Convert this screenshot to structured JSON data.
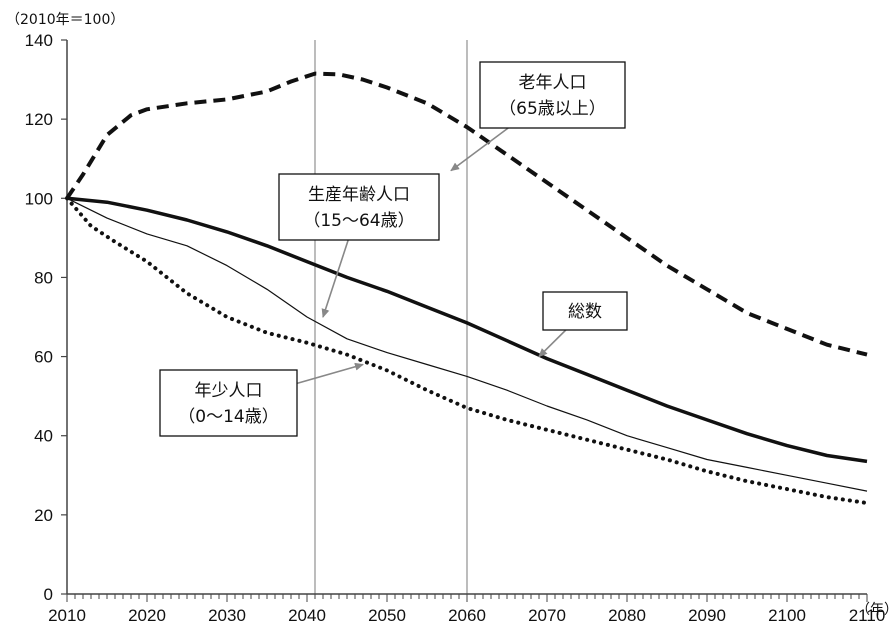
{
  "chart_data": {
    "type": "line",
    "title": "",
    "y_unit_label": "（2010年＝100）",
    "x_unit_label": "（年）",
    "xlim": [
      2010,
      2110
    ],
    "ylim": [
      0,
      140
    ],
    "x_tick_labels": [
      "2010",
      "2020",
      "2030",
      "2040",
      "2050",
      "2060",
      "2070",
      "2080",
      "2090",
      "2100",
      "2110"
    ],
    "x_ticks": [
      2010,
      2020,
      2030,
      2040,
      2050,
      2060,
      2070,
      2080,
      2090,
      2100,
      2110
    ],
    "y_ticks": [
      0,
      20,
      40,
      60,
      80,
      100,
      120,
      140
    ],
    "y_tick_labels": [
      "0",
      "20",
      "40",
      "60",
      "80",
      "100",
      "120",
      "140"
    ],
    "vertical_reference_lines": [
      2041,
      2060
    ],
    "grid": false,
    "series": [
      {
        "id": "elderly",
        "style": "dashed-thick",
        "x": [
          2010,
          2012,
          2015,
          2018,
          2020,
          2025,
          2030,
          2035,
          2038,
          2041,
          2044,
          2047,
          2050,
          2055,
          2060,
          2065,
          2070,
          2075,
          2080,
          2085,
          2090,
          2095,
          2100,
          2105,
          2110
        ],
        "values": [
          100,
          106,
          116,
          121,
          122.5,
          124,
          125,
          127,
          129.5,
          131.5,
          131.3,
          130,
          128,
          124,
          118,
          111,
          104,
          97,
          90,
          83,
          77,
          71,
          67,
          63,
          60.5
        ]
      },
      {
        "id": "working-age",
        "style": "solid-thin",
        "x": [
          2010,
          2015,
          2020,
          2025,
          2030,
          2035,
          2040,
          2045,
          2050,
          2055,
          2060,
          2065,
          2070,
          2075,
          2080,
          2085,
          2090,
          2095,
          2100,
          2105,
          2110
        ],
        "values": [
          100,
          95,
          91,
          88,
          83,
          77,
          70,
          64.5,
          61,
          58,
          55,
          51.5,
          47.5,
          44,
          40,
          37,
          34,
          32,
          30,
          28,
          26
        ]
      },
      {
        "id": "total",
        "style": "solid-thick",
        "x": [
          2010,
          2015,
          2020,
          2025,
          2030,
          2035,
          2040,
          2045,
          2050,
          2055,
          2060,
          2065,
          2070,
          2075,
          2080,
          2085,
          2090,
          2095,
          2100,
          2105,
          2110
        ],
        "values": [
          100,
          99,
          97,
          94.5,
          91.5,
          88,
          84,
          80,
          76.5,
          72.5,
          68.5,
          64,
          59.5,
          55.5,
          51.5,
          47.5,
          44,
          40.5,
          37.5,
          35,
          33.5
        ]
      },
      {
        "id": "youth",
        "style": "dotted-thick",
        "x": [
          2010,
          2013,
          2016,
          2020,
          2025,
          2030,
          2035,
          2040,
          2045,
          2050,
          2055,
          2060,
          2065,
          2070,
          2075,
          2080,
          2085,
          2090,
          2095,
          2100,
          2105,
          2110
        ],
        "values": [
          100,
          93,
          89,
          84,
          76,
          70,
          66,
          63.5,
          60.5,
          56.5,
          51.5,
          47,
          44,
          41.5,
          39,
          36.5,
          34,
          31,
          28.5,
          26.5,
          24.5,
          23
        ]
      }
    ],
    "callouts": [
      {
        "id": "elderly",
        "lines": [
          "老年人口",
          "（65歳以上）"
        ],
        "target_x": 2058,
        "target_y": 107
      },
      {
        "id": "working-age",
        "lines": [
          "生産年齢人口",
          "（15〜64歳）"
        ],
        "target_x": 2042,
        "target_y": 70
      },
      {
        "id": "total",
        "lines": [
          "総数"
        ],
        "target_x": 2069,
        "target_y": 60
      },
      {
        "id": "youth",
        "lines": [
          "年少人口",
          "（0〜14歳）"
        ],
        "target_x": 2047,
        "target_y": 58
      }
    ]
  }
}
